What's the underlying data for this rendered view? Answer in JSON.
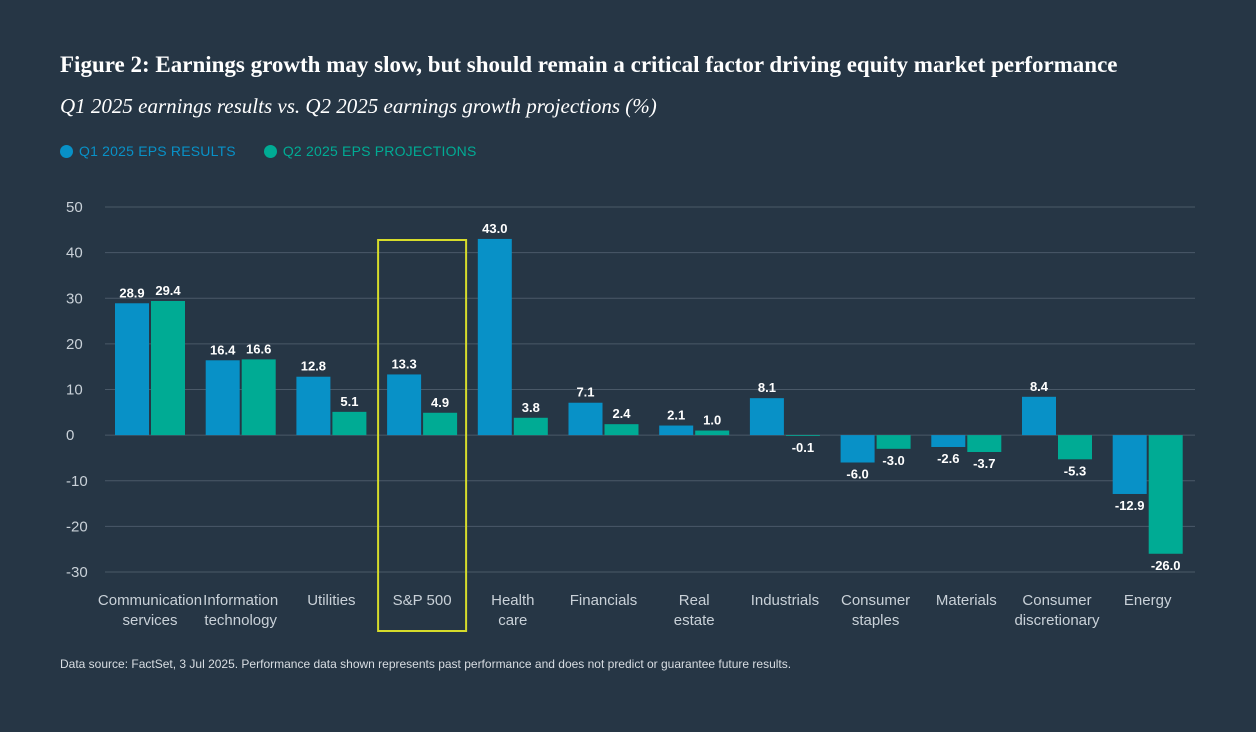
{
  "title": "Figure 2: Earnings growth may slow, but should remain a critical factor driving equity market performance",
  "subtitle": "Q1 2025 earnings results vs. Q2 2025 earnings growth projections (%)",
  "footnote": "Data source: FactSet, 3 Jul 2025. Performance data shown represents past performance and does not predict or guarantee future results.",
  "colors": {
    "background": "#263645",
    "q1": "#0891c7",
    "q2": "#00ab94",
    "highlight": "#d6dc2b",
    "grid": "#4a5968",
    "axis_text": "#c9d1d8",
    "label_text": "#ffffff"
  },
  "chart_data": {
    "type": "bar",
    "title": "Figure 2: Earnings growth may slow, but should remain a critical factor driving equity market performance",
    "subtitle": "Q1 2025 earnings results vs. Q2 2025 earnings growth projections (%)",
    "xlabel": "",
    "ylabel": "",
    "ylim": [
      -30,
      50
    ],
    "yticks": [
      50,
      40,
      30,
      20,
      10,
      0,
      -10,
      -20,
      -30
    ],
    "grid": true,
    "legend_position": "top-left",
    "highlighted_category": "S&P 500",
    "categories": [
      [
        "Communication",
        "services"
      ],
      [
        "Information",
        "technology"
      ],
      [
        "Utilities"
      ],
      [
        "S&P 500"
      ],
      [
        "Health",
        "care"
      ],
      [
        "Financials"
      ],
      [
        "Real",
        "estate"
      ],
      [
        "Industrials"
      ],
      [
        "Consumer",
        "staples"
      ],
      [
        "Materials"
      ],
      [
        "Consumer",
        "discretionary"
      ],
      [
        "Energy"
      ]
    ],
    "series": [
      {
        "name": "Q1 2025 EPS RESULTS",
        "color": "#0891c7",
        "values": [
          28.9,
          16.4,
          12.8,
          13.3,
          43.0,
          7.1,
          2.1,
          8.1,
          -6.0,
          -2.6,
          8.4,
          -12.9
        ],
        "labels": [
          "28.9",
          "16.4",
          "12.8",
          "13.3",
          "43.0",
          "7.1",
          "2.1",
          "8.1",
          "-6.0",
          "-2.6",
          "8.4",
          "-12.9"
        ]
      },
      {
        "name": "Q2 2025 EPS PROJECTIONS",
        "color": "#00ab94",
        "values": [
          29.4,
          16.6,
          5.1,
          4.9,
          3.8,
          2.4,
          1.0,
          -0.1,
          -3.0,
          -3.7,
          -5.3,
          -26.0
        ],
        "labels": [
          "29.4",
          "16.6",
          "5.1",
          "4.9",
          "3.8",
          "2.4",
          "1.0",
          "-0.1",
          "-3.0",
          "-3.7",
          "-5.3",
          "-26.0"
        ]
      }
    ]
  }
}
